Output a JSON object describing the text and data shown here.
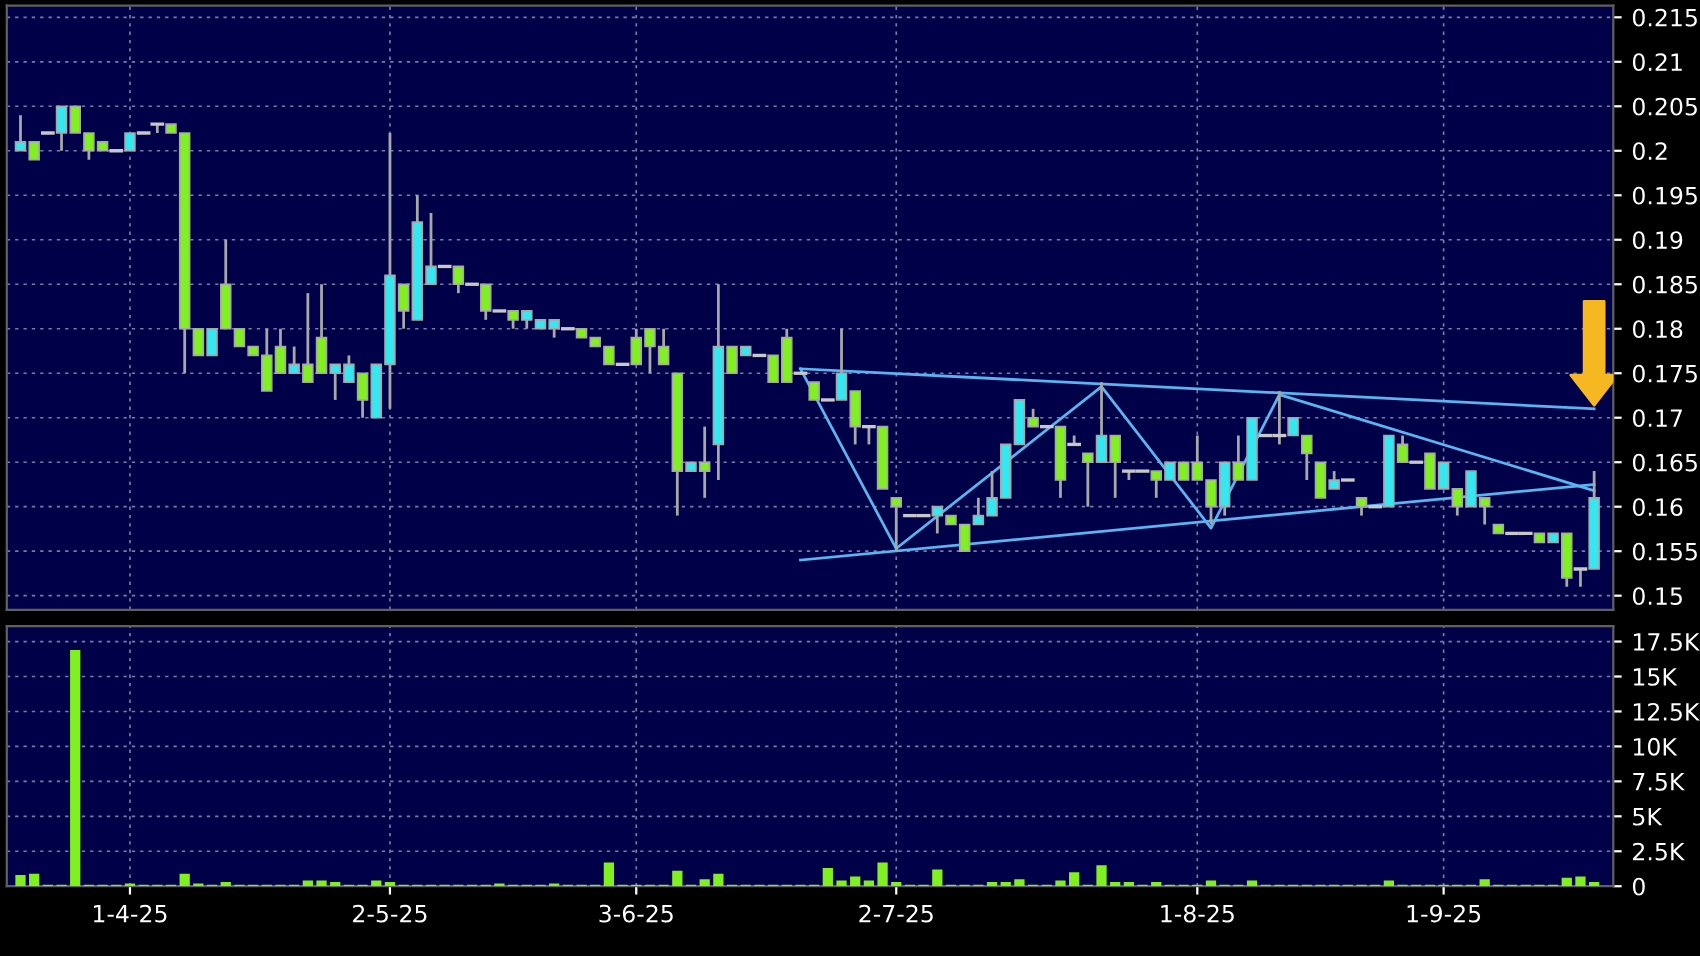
{
  "chart_data": [
    {
      "type": "candlestick",
      "ylim": [
        0.1484,
        0.2163
      ],
      "grid": true,
      "tick_labels": "y",
      "yticks": [
        0.15,
        0.155,
        0.16,
        0.165,
        0.17,
        0.175,
        0.18,
        0.185,
        0.19,
        0.195,
        0.2,
        0.205,
        0.21,
        0.215
      ],
      "categories": [
        null,
        null,
        null,
        null,
        null,
        null,
        null,
        null,
        null,
        null,
        null,
        null,
        null,
        null,
        null,
        null,
        null,
        null,
        null,
        null,
        null,
        null,
        null,
        null,
        null,
        null,
        null,
        null,
        null,
        null,
        null,
        null,
        null,
        null,
        null,
        null,
        null,
        null,
        null,
        null,
        null,
        null,
        null,
        null,
        null,
        null,
        null,
        null,
        null,
        null,
        null,
        null,
        null,
        null,
        null,
        null,
        null,
        null,
        null,
        null,
        null,
        null,
        null,
        null,
        null,
        null,
        null,
        null,
        null,
        null,
        null,
        null,
        null,
        null,
        null,
        null,
        null,
        null,
        null,
        null,
        null,
        null,
        null,
        null,
        null,
        null,
        null,
        null,
        null,
        null,
        null,
        null,
        null,
        null,
        null,
        null,
        null,
        null,
        null,
        null,
        null,
        null,
        null,
        null,
        null,
        null,
        null,
        null,
        null,
        null,
        null,
        null,
        null,
        null,
        null,
        null
      ],
      "ohlc": [
        [
          0.2,
          0.204,
          0.2,
          0.201
        ],
        [
          0.201,
          0.201,
          0.199,
          0.199
        ],
        [
          0.202,
          0.202,
          0.202,
          0.202
        ],
        [
          0.202,
          0.205,
          0.2,
          0.205
        ],
        [
          0.205,
          0.205,
          0.202,
          0.202
        ],
        [
          0.202,
          0.202,
          0.199,
          0.2
        ],
        [
          0.201,
          0.201,
          0.2,
          0.2
        ],
        [
          0.2,
          0.2,
          0.2,
          0.2
        ],
        [
          0.2,
          0.202,
          0.2,
          0.202
        ],
        [
          0.202,
          0.202,
          0.202,
          0.202
        ],
        [
          0.203,
          0.203,
          0.202,
          0.203
        ],
        [
          0.203,
          0.203,
          0.202,
          0.202
        ],
        [
          0.202,
          0.202,
          0.175,
          0.18
        ],
        [
          0.18,
          0.18,
          0.177,
          0.177
        ],
        [
          0.177,
          0.18,
          0.177,
          0.18
        ],
        [
          0.185,
          0.19,
          0.18,
          0.18
        ],
        [
          0.18,
          0.18,
          0.178,
          0.178
        ],
        [
          0.178,
          0.178,
          0.177,
          0.177
        ],
        [
          0.177,
          0.18,
          0.173,
          0.173
        ],
        [
          0.178,
          0.18,
          0.175,
          0.175
        ],
        [
          0.175,
          0.178,
          0.175,
          0.176
        ],
        [
          0.176,
          0.184,
          0.174,
          0.174
        ],
        [
          0.179,
          0.185,
          0.175,
          0.175
        ],
        [
          0.175,
          0.176,
          0.172,
          0.176
        ],
        [
          0.174,
          0.177,
          0.174,
          0.176
        ],
        [
          0.175,
          0.175,
          0.17,
          0.172
        ],
        [
          0.17,
          0.176,
          0.17,
          0.176
        ],
        [
          0.176,
          0.202,
          0.171,
          0.186
        ],
        [
          0.185,
          0.185,
          0.18,
          0.182
        ],
        [
          0.181,
          0.195,
          0.181,
          0.192
        ],
        [
          0.185,
          0.193,
          0.185,
          0.187
        ],
        [
          0.187,
          0.187,
          0.187,
          0.187
        ],
        [
          0.187,
          0.187,
          0.184,
          0.185
        ],
        [
          0.185,
          0.185,
          0.185,
          0.185
        ],
        [
          0.185,
          0.185,
          0.181,
          0.182
        ],
        [
          0.182,
          0.182,
          0.182,
          0.182
        ],
        [
          0.182,
          0.182,
          0.18,
          0.181
        ],
        [
          0.181,
          0.182,
          0.18,
          0.182
        ],
        [
          0.18,
          0.181,
          0.18,
          0.181
        ],
        [
          0.18,
          0.181,
          0.179,
          0.181
        ],
        [
          0.18,
          0.18,
          0.18,
          0.18
        ],
        [
          0.18,
          0.18,
          0.179,
          0.179
        ],
        [
          0.179,
          0.179,
          0.178,
          0.178
        ],
        [
          0.178,
          0.178,
          0.176,
          0.176
        ],
        [
          0.176,
          0.176,
          0.176,
          0.176
        ],
        [
          0.179,
          0.18,
          0.176,
          0.176
        ],
        [
          0.18,
          0.18,
          0.175,
          0.178
        ],
        [
          0.178,
          0.18,
          0.176,
          0.176
        ],
        [
          0.175,
          0.175,
          0.159,
          0.164
        ],
        [
          0.164,
          0.165,
          0.164,
          0.165
        ],
        [
          0.165,
          0.169,
          0.161,
          0.164
        ],
        [
          0.167,
          0.185,
          0.163,
          0.178
        ],
        [
          0.178,
          0.178,
          0.175,
          0.175
        ],
        [
          0.177,
          0.178,
          0.177,
          0.178
        ],
        [
          0.177,
          0.177,
          0.177,
          0.177
        ],
        [
          0.177,
          0.177,
          0.174,
          0.174
        ],
        [
          0.179,
          0.18,
          0.174,
          0.174
        ],
        [
          0.175,
          0.175,
          0.175,
          0.175
        ],
        [
          0.174,
          0.174,
          0.172,
          0.172
        ],
        [
          0.172,
          0.172,
          0.172,
          0.172
        ],
        [
          0.172,
          0.18,
          0.172,
          0.175
        ],
        [
          0.173,
          0.173,
          0.167,
          0.169
        ],
        [
          0.169,
          0.169,
          0.167,
          0.169
        ],
        [
          0.169,
          0.169,
          0.162,
          0.162
        ],
        [
          0.161,
          0.161,
          0.155,
          0.16
        ],
        [
          0.159,
          0.159,
          0.159,
          0.159
        ],
        [
          0.159,
          0.159,
          0.159,
          0.159
        ],
        [
          0.159,
          0.16,
          0.157,
          0.16
        ],
        [
          0.159,
          0.159,
          0.158,
          0.158
        ],
        [
          0.158,
          0.158,
          0.155,
          0.155
        ],
        [
          0.158,
          0.161,
          0.158,
          0.159
        ],
        [
          0.159,
          0.164,
          0.159,
          0.161
        ],
        [
          0.161,
          0.167,
          0.161,
          0.167
        ],
        [
          0.167,
          0.172,
          0.167,
          0.172
        ],
        [
          0.17,
          0.171,
          0.169,
          0.169
        ],
        [
          0.169,
          0.169,
          0.169,
          0.169
        ],
        [
          0.169,
          0.169,
          0.161,
          0.163
        ],
        [
          0.167,
          0.168,
          0.167,
          0.167
        ],
        [
          0.166,
          0.166,
          0.16,
          0.165
        ],
        [
          0.165,
          0.174,
          0.165,
          0.168
        ],
        [
          0.168,
          0.168,
          0.161,
          0.165
        ],
        [
          0.164,
          0.164,
          0.163,
          0.164
        ],
        [
          0.164,
          0.164,
          0.164,
          0.164
        ],
        [
          0.164,
          0.164,
          0.161,
          0.163
        ],
        [
          0.163,
          0.165,
          0.163,
          0.165
        ],
        [
          0.165,
          0.165,
          0.163,
          0.163
        ],
        [
          0.165,
          0.168,
          0.163,
          0.163
        ],
        [
          0.163,
          0.163,
          0.158,
          0.16
        ],
        [
          0.16,
          0.165,
          0.159,
          0.165
        ],
        [
          0.165,
          0.168,
          0.163,
          0.163
        ],
        [
          0.163,
          0.17,
          0.163,
          0.17
        ],
        [
          0.168,
          0.168,
          0.168,
          0.168
        ],
        [
          0.168,
          0.173,
          0.167,
          0.168
        ],
        [
          0.168,
          0.17,
          0.168,
          0.17
        ],
        [
          0.168,
          0.168,
          0.163,
          0.166
        ],
        [
          0.165,
          0.165,
          0.161,
          0.161
        ],
        [
          0.162,
          0.164,
          0.162,
          0.163
        ],
        [
          0.163,
          0.163,
          0.163,
          0.163
        ],
        [
          0.161,
          0.161,
          0.159,
          0.16
        ],
        [
          0.16,
          0.16,
          0.16,
          0.16
        ],
        [
          0.16,
          0.168,
          0.16,
          0.168
        ],
        [
          0.167,
          0.168,
          0.165,
          0.165
        ],
        [
          0.165,
          0.165,
          0.165,
          0.165
        ],
        [
          0.166,
          0.166,
          0.162,
          0.162
        ],
        [
          0.162,
          0.165,
          0.162,
          0.165
        ],
        [
          0.162,
          0.162,
          0.159,
          0.16
        ],
        [
          0.16,
          0.164,
          0.16,
          0.164
        ],
        [
          0.161,
          0.161,
          0.158,
          0.16
        ],
        [
          0.158,
          0.158,
          0.157,
          0.157
        ],
        [
          0.157,
          0.157,
          0.157,
          0.157
        ],
        [
          0.157,
          0.157,
          0.157,
          0.157
        ],
        [
          0.157,
          0.157,
          0.156,
          0.156
        ],
        [
          0.156,
          0.157,
          0.156,
          0.157
        ],
        [
          0.157,
          0.157,
          0.151,
          0.152
        ],
        [
          0.153,
          0.153,
          0.151,
          0.153
        ],
        [
          0.153,
          0.164,
          0.153,
          0.161
        ]
      ],
      "colors": [
        "#33e8f0",
        "#80f020",
        "#c8c8c8",
        "#33e8f0",
        "#80f020",
        "#80f020",
        "#80f020",
        "#c8c8c8",
        "#33e8f0",
        "#c8c8c8",
        "#c8c8c8",
        "#80f020",
        "#80f020",
        "#80f020",
        "#33e8f0",
        "#80f020",
        "#80f020",
        "#80f020",
        "#80f020",
        "#80f020",
        "#33e8f0",
        "#80f020",
        "#80f020",
        "#33e8f0",
        "#33e8f0",
        "#80f020",
        "#33e8f0",
        "#33e8f0",
        "#80f020",
        "#33e8f0",
        "#33e8f0",
        "#c8c8c8",
        "#80f020",
        "#c8c8c8",
        "#80f020",
        "#c8c8c8",
        "#80f020",
        "#33e8f0",
        "#33e8f0",
        "#33e8f0",
        "#c8c8c8",
        "#80f020",
        "#80f020",
        "#80f020",
        "#c8c8c8",
        "#80f020",
        "#80f020",
        "#80f020",
        "#80f020",
        "#33e8f0",
        "#80f020",
        "#33e8f0",
        "#80f020",
        "#33e8f0",
        "#c8c8c8",
        "#80f020",
        "#80f020",
        "#c8c8c8",
        "#80f020",
        "#c8c8c8",
        "#33e8f0",
        "#80f020",
        "#c8c8c8",
        "#80f020",
        "#80f020",
        "#c8c8c8",
        "#c8c8c8",
        "#33e8f0",
        "#80f020",
        "#80f020",
        "#33e8f0",
        "#33e8f0",
        "#33e8f0",
        "#33e8f0",
        "#80f020",
        "#c8c8c8",
        "#80f020",
        "#c8c8c8",
        "#80f020",
        "#33e8f0",
        "#80f020",
        "#c8c8c8",
        "#c8c8c8",
        "#80f020",
        "#33e8f0",
        "#80f020",
        "#80f020",
        "#80f020",
        "#33e8f0",
        "#80f020",
        "#33e8f0",
        "#c8c8c8",
        "#c8c8c8",
        "#33e8f0",
        "#80f020",
        "#80f020",
        "#33e8f0",
        "#c8c8c8",
        "#80f020",
        "#c8c8c8",
        "#33e8f0",
        "#80f020",
        "#c8c8c8",
        "#80f020",
        "#33e8f0",
        "#80f020",
        "#33e8f0",
        "#80f020",
        "#80f020",
        "#c8c8c8",
        "#c8c8c8",
        "#80f020",
        "#33e8f0",
        "#80f020",
        "#c8c8c8",
        "#33e8f0"
      ],
      "series": [
        {
          "type": "line",
          "color": "#5ab4f0",
          "values": [
            null,
            null,
            null,
            null,
            null,
            null,
            null,
            null,
            null,
            null,
            null,
            null,
            null,
            null,
            null,
            null,
            null,
            null,
            null,
            null,
            null,
            null,
            null,
            null,
            null,
            null,
            null,
            null,
            null,
            null,
            null,
            null,
            null,
            null,
            null,
            null,
            null,
            null,
            null,
            null,
            null,
            null,
            null,
            null,
            null,
            null,
            null,
            null,
            null,
            null,
            null,
            null,
            null,
            null,
            null,
            null,
            null,
            0.1755,
            null,
            null,
            null,
            null,
            null,
            null,
            null,
            null,
            null,
            null,
            null,
            null,
            null,
            null,
            null,
            null,
            null,
            null,
            null,
            null,
            null,
            null,
            null,
            null,
            null,
            null,
            null,
            null,
            null,
            null,
            null,
            null,
            null,
            null,
            null,
            null,
            null,
            null,
            null,
            null,
            null,
            null,
            null,
            null,
            null,
            null,
            null,
            null,
            null,
            null,
            null,
            null,
            null,
            null,
            null,
            null,
            null,
            0.171
          ]
        },
        {
          "type": "line",
          "color": "#5ab4f0",
          "values": [
            null,
            null,
            null,
            null,
            null,
            null,
            null,
            null,
            null,
            null,
            null,
            null,
            null,
            null,
            null,
            null,
            null,
            null,
            null,
            null,
            null,
            null,
            null,
            null,
            null,
            null,
            null,
            null,
            null,
            null,
            null,
            null,
            null,
            null,
            null,
            null,
            null,
            null,
            null,
            null,
            null,
            null,
            null,
            null,
            null,
            null,
            null,
            null,
            null,
            null,
            null,
            null,
            null,
            null,
            null,
            null,
            null,
            0.154,
            null,
            null,
            null,
            null,
            null,
            null,
            null,
            null,
            null,
            null,
            null,
            null,
            null,
            null,
            null,
            null,
            null,
            null,
            null,
            null,
            null,
            null,
            null,
            null,
            null,
            null,
            null,
            null,
            null,
            null,
            null,
            null,
            null,
            null,
            null,
            null,
            null,
            null,
            null,
            null,
            null,
            null,
            null,
            null,
            null,
            null,
            null,
            null,
            null,
            null,
            null,
            null,
            null,
            null,
            null,
            null,
            null,
            0.1625
          ]
        },
        {
          "type": "line",
          "color": "#5ab4f0",
          "values": [
            null,
            null,
            null,
            null,
            null,
            null,
            null,
            null,
            null,
            null,
            null,
            null,
            null,
            null,
            null,
            null,
            null,
            null,
            null,
            null,
            null,
            null,
            null,
            null,
            null,
            null,
            null,
            null,
            null,
            null,
            null,
            null,
            null,
            null,
            null,
            null,
            null,
            null,
            null,
            null,
            null,
            null,
            null,
            null,
            null,
            null,
            null,
            null,
            null,
            null,
            null,
            null,
            null,
            null,
            null,
            null,
            null,
            0.1755,
            null,
            null,
            null,
            null,
            null,
            null,
            0.1553,
            null,
            null,
            null,
            null,
            null,
            null,
            null,
            null,
            null,
            null,
            null,
            null,
            null,
            null,
            0.1735,
            null,
            null,
            null,
            null,
            null,
            null,
            null,
            0.1576,
            null,
            null,
            null,
            null,
            0.1726,
            null,
            null,
            null,
            null,
            null,
            null,
            null,
            null,
            null,
            null,
            null,
            null,
            null,
            null,
            null,
            null,
            null,
            null,
            null,
            null,
            null,
            null,
            0.1618
          ]
        }
      ]
    },
    {
      "type": "bar",
      "color": "#80f020",
      "ylim": [
        0,
        18600
      ],
      "grid": true,
      "yticks": [
        0,
        {
          "value": 2500,
          "label": "2.5K"
        },
        {
          "value": 5000,
          "label": "5K"
        },
        {
          "value": 7500,
          "label": "7.5K"
        },
        {
          "value": 10000,
          "label": "10K"
        },
        {
          "value": 12500,
          "label": "12.5K"
        },
        {
          "value": 15000,
          "label": "15K"
        },
        {
          "value": 17500,
          "label": "17.5K"
        }
      ],
      "categories": [
        null,
        null,
        null,
        null,
        null,
        null,
        null,
        null,
        "1-4-25",
        null,
        null,
        null,
        null,
        null,
        null,
        null,
        null,
        null,
        null,
        null,
        null,
        null,
        null,
        null,
        null,
        null,
        null,
        "2-5-25",
        null,
        null,
        null,
        null,
        null,
        null,
        null,
        null,
        null,
        null,
        null,
        null,
        null,
        null,
        null,
        null,
        null,
        "3-6-25",
        null,
        null,
        null,
        null,
        null,
        null,
        null,
        null,
        null,
        null,
        null,
        null,
        null,
        null,
        null,
        null,
        null,
        null,
        "2-7-25",
        null,
        null,
        null,
        null,
        null,
        null,
        null,
        null,
        null,
        null,
        null,
        null,
        null,
        null,
        null,
        null,
        null,
        null,
        null,
        null,
        null,
        "1-8-25",
        null,
        null,
        null,
        null,
        null,
        null,
        null,
        null,
        null,
        null,
        null,
        null,
        null,
        null,
        null,
        null,
        null,
        "1-9-25",
        null,
        null,
        null,
        null,
        null,
        null,
        null,
        null,
        null,
        null,
        null
      ],
      "values": [
        800,
        900,
        100,
        100,
        16900,
        100,
        100,
        100,
        200,
        100,
        100,
        100,
        900,
        200,
        100,
        300,
        100,
        100,
        100,
        100,
        100,
        400,
        400,
        300,
        100,
        100,
        400,
        300,
        100,
        100,
        100,
        100,
        100,
        100,
        100,
        200,
        100,
        100,
        100,
        200,
        100,
        100,
        100,
        1700,
        100,
        100,
        100,
        100,
        1100,
        100,
        500,
        900,
        100,
        100,
        100,
        100,
        100,
        100,
        100,
        1300,
        400,
        700,
        400,
        1700,
        300,
        100,
        100,
        1200,
        100,
        100,
        100,
        300,
        300,
        500,
        100,
        100,
        400,
        1000,
        100,
        1500,
        300,
        300,
        100,
        300,
        100,
        100,
        100,
        400,
        100,
        100,
        400,
        100,
        100,
        100,
        100,
        100,
        100,
        100,
        100,
        100,
        400,
        100,
        100,
        100,
        100,
        100,
        100,
        500,
        100,
        100,
        100,
        100,
        100,
        600,
        700,
        300
      ]
    }
  ]
}
